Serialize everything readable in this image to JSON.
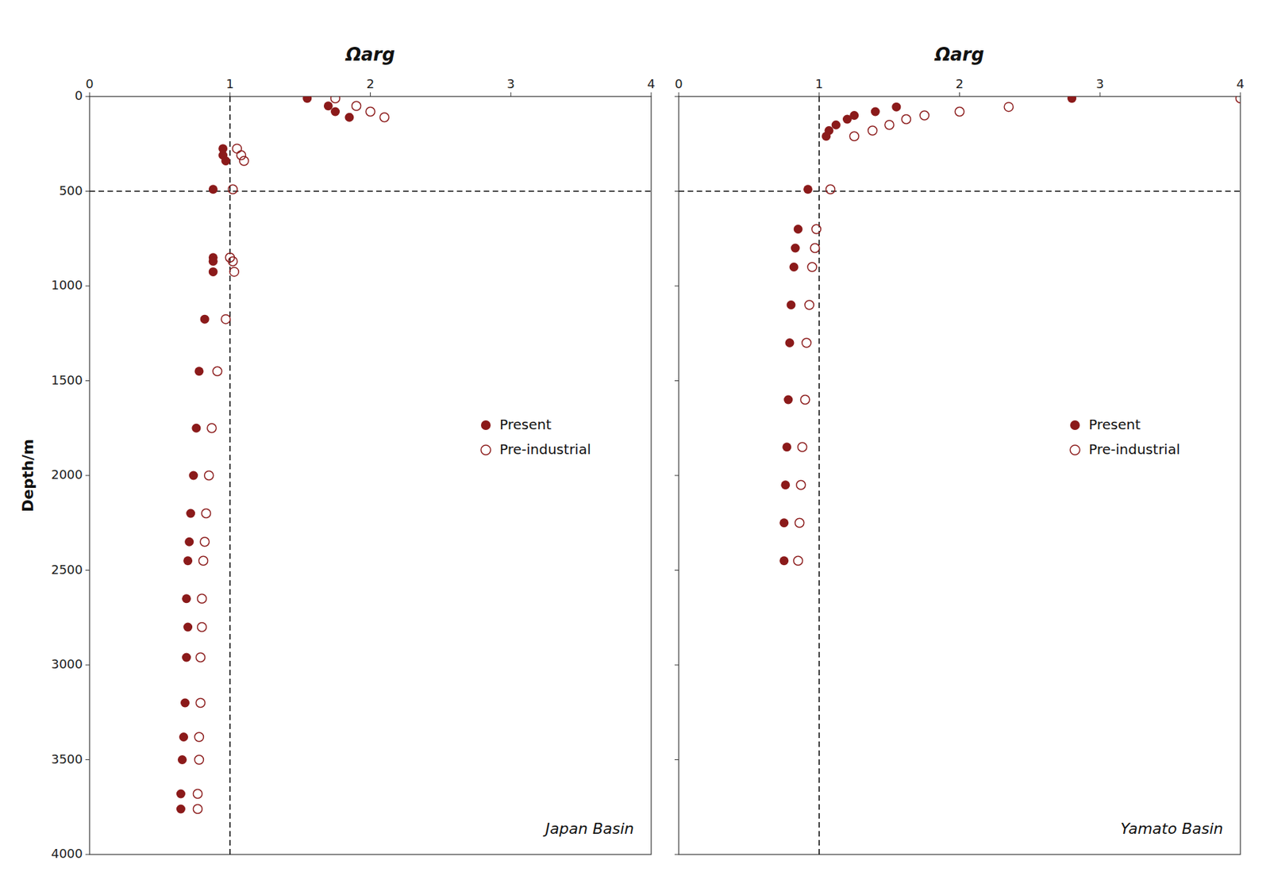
{
  "chart_data": [
    {
      "type": "scatter",
      "xlabel": "Ωarg",
      "ylabel": "Depth/m",
      "annotation": "Japan Basin",
      "xlim": [
        0,
        4
      ],
      "ylim": [
        4000,
        0
      ],
      "xticks": [
        0,
        1,
        2,
        3,
        4
      ],
      "yticks": [
        0,
        500,
        1000,
        1500,
        2000,
        2500,
        3000,
        3500,
        4000
      ],
      "xline": 1.0,
      "yline": 500,
      "grid": false,
      "legend": "right",
      "tick_labels": true,
      "series": [
        {
          "name": "Present",
          "color": "#8B1A1A",
          "marker": "circle",
          "x": [
            1.55,
            1.7,
            1.75,
            1.85,
            0.95,
            0.95,
            0.97,
            0.88,
            0.88,
            0.88,
            0.88,
            0.82,
            0.78,
            0.76,
            0.74,
            0.72,
            0.71,
            0.7,
            0.69,
            0.7,
            0.69,
            0.68,
            0.67,
            0.66,
            0.65,
            0.65
          ],
          "values": [
            10,
            50,
            80,
            110,
            275,
            310,
            340,
            490,
            850,
            870,
            925,
            1175,
            1450,
            1750,
            2000,
            2200,
            2350,
            2450,
            2650,
            2800,
            2960,
            3200,
            3380,
            3500,
            3680,
            3760
          ]
        },
        {
          "name": "Pre-industrial",
          "color": "#8B1A1A",
          "marker": "circle-open",
          "x": [
            1.75,
            1.9,
            2.0,
            2.1,
            1.05,
            1.08,
            1.1,
            1.02,
            1.0,
            1.02,
            1.03,
            0.97,
            0.91,
            0.87,
            0.85,
            0.83,
            0.82,
            0.81,
            0.8,
            0.8,
            0.79,
            0.79,
            0.78,
            0.78,
            0.77,
            0.77
          ],
          "values": [
            10,
            50,
            80,
            110,
            275,
            310,
            340,
            490,
            850,
            870,
            925,
            1175,
            1450,
            1750,
            2000,
            2200,
            2350,
            2450,
            2650,
            2800,
            2960,
            3200,
            3380,
            3500,
            3680,
            3760
          ]
        }
      ]
    },
    {
      "type": "scatter",
      "xlabel": "Ωarg",
      "annotation": "Yamato Basin",
      "xlim": [
        0,
        4
      ],
      "ylim": [
        4000,
        0
      ],
      "xticks": [
        0,
        1,
        2,
        3,
        4
      ],
      "yticks": [
        0,
        500,
        1000,
        1500,
        2000,
        2500,
        3000,
        3500,
        4000
      ],
      "xline": 1.0,
      "yline": 500,
      "grid": false,
      "legend": "right",
      "tick_labels": "x",
      "series": [
        {
          "name": "Present",
          "color": "#8B1A1A",
          "marker": "circle",
          "x": [
            2.8,
            1.55,
            1.4,
            1.25,
            1.2,
            1.12,
            1.07,
            1.05,
            0.92,
            0.85,
            0.83,
            0.82,
            0.8,
            0.79,
            0.78,
            0.77,
            0.76,
            0.75,
            0.75
          ],
          "values": [
            10,
            55,
            80,
            100,
            120,
            150,
            180,
            210,
            490,
            700,
            800,
            900,
            1100,
            1300,
            1600,
            1850,
            2050,
            2250,
            2450
          ]
        },
        {
          "name": "Pre-industrial",
          "color": "#8B1A1A",
          "marker": "circle-open",
          "x": [
            4.0,
            2.35,
            2.0,
            1.75,
            1.62,
            1.5,
            1.38,
            1.25,
            1.08,
            0.98,
            0.97,
            0.95,
            0.93,
            0.91,
            0.9,
            0.88,
            0.87,
            0.86,
            0.85
          ],
          "values": [
            10,
            55,
            80,
            100,
            120,
            150,
            180,
            210,
            490,
            700,
            800,
            900,
            1100,
            1300,
            1600,
            1850,
            2050,
            2250,
            2450
          ]
        }
      ]
    }
  ]
}
